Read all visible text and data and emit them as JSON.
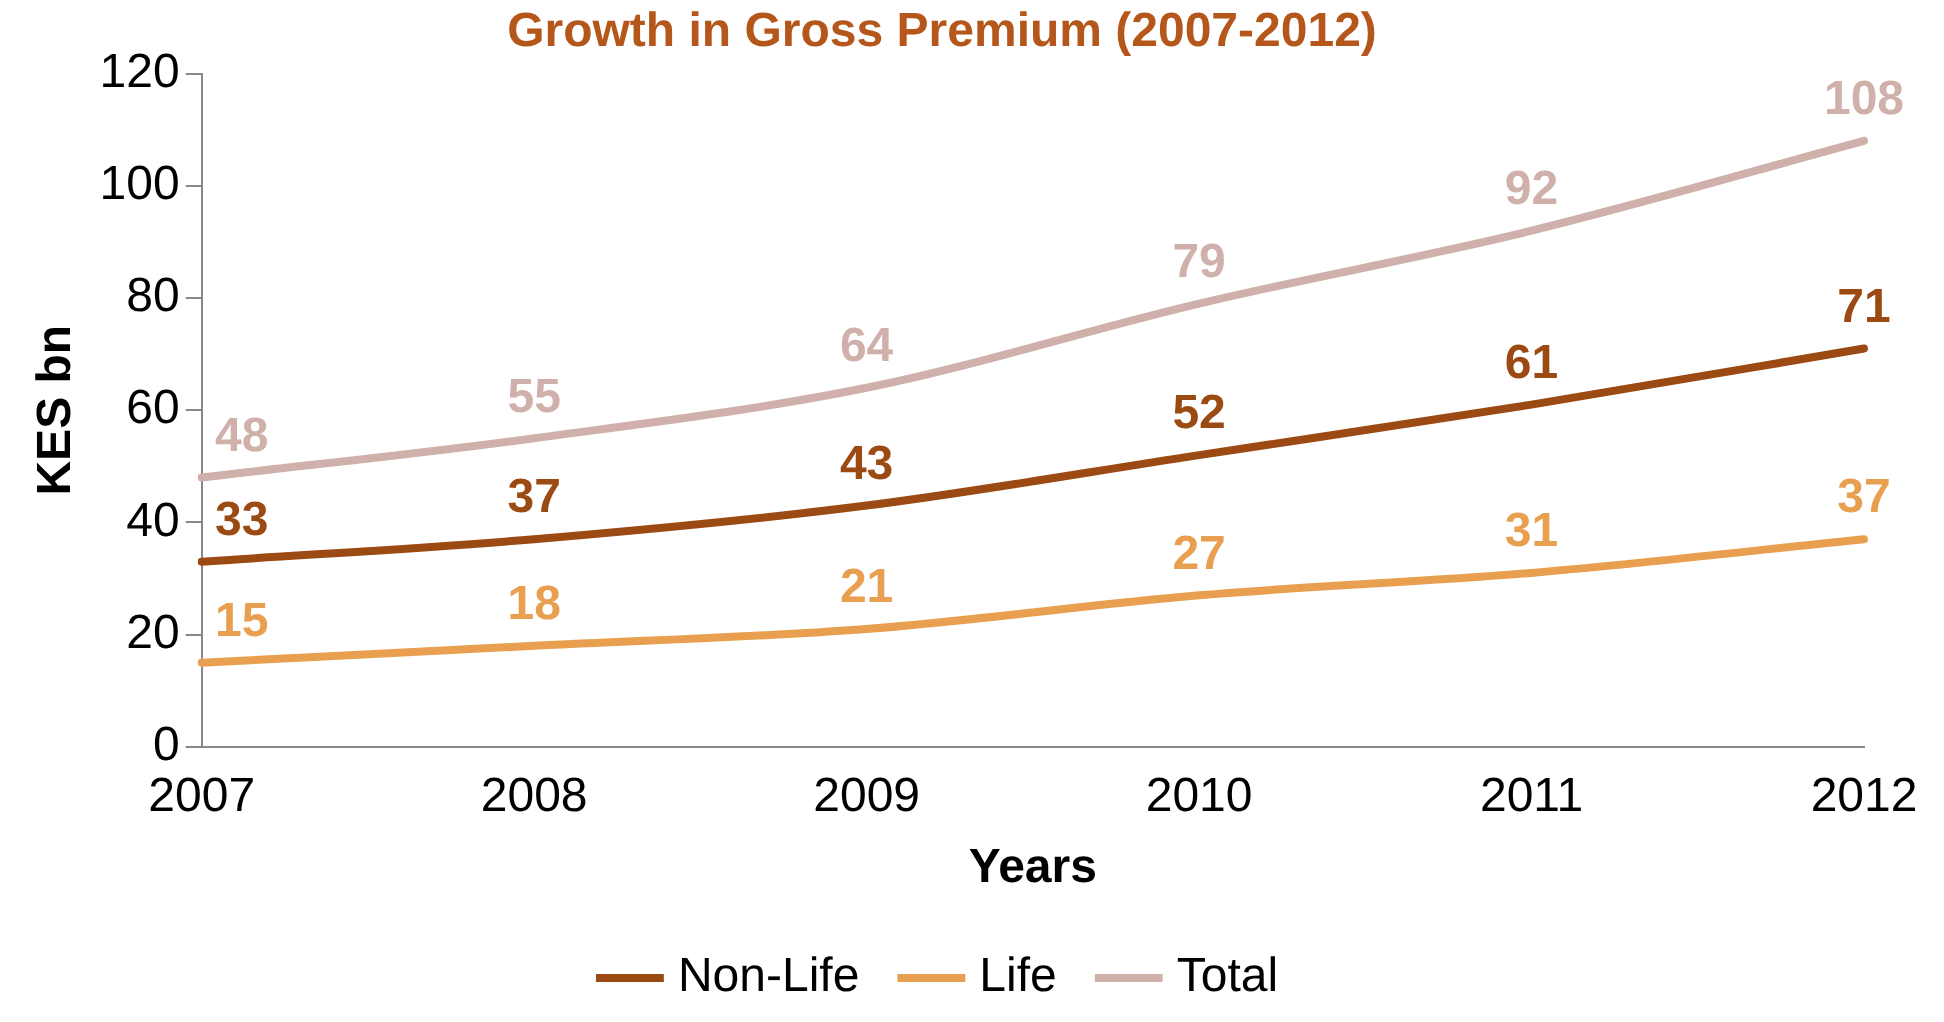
{
  "chart_data": {
    "type": "line",
    "title": "Growth in Gross Premium (2007-2012)",
    "xlabel": "Years",
    "ylabel": "KES bn",
    "categories": [
      "2007",
      "2008",
      "2009",
      "2010",
      "2011",
      "2012"
    ],
    "series": [
      {
        "name": "Non-Life",
        "color": "#9c4a14",
        "values": [
          33,
          37,
          43,
          52,
          61,
          71
        ]
      },
      {
        "name": "Life",
        "color": "#e8a050",
        "values": [
          15,
          18,
          21,
          27,
          31,
          37
        ]
      },
      {
        "name": "Total",
        "color": "#cfb0aa",
        "values": [
          48,
          55,
          64,
          79,
          92,
          108
        ]
      }
    ],
    "ylim": [
      0,
      120
    ],
    "yticks": [
      0,
      20,
      40,
      60,
      80,
      100,
      120
    ],
    "grid": false,
    "legend": "bottom",
    "marker": "none",
    "line_style": "solid",
    "data_labels": true
  }
}
